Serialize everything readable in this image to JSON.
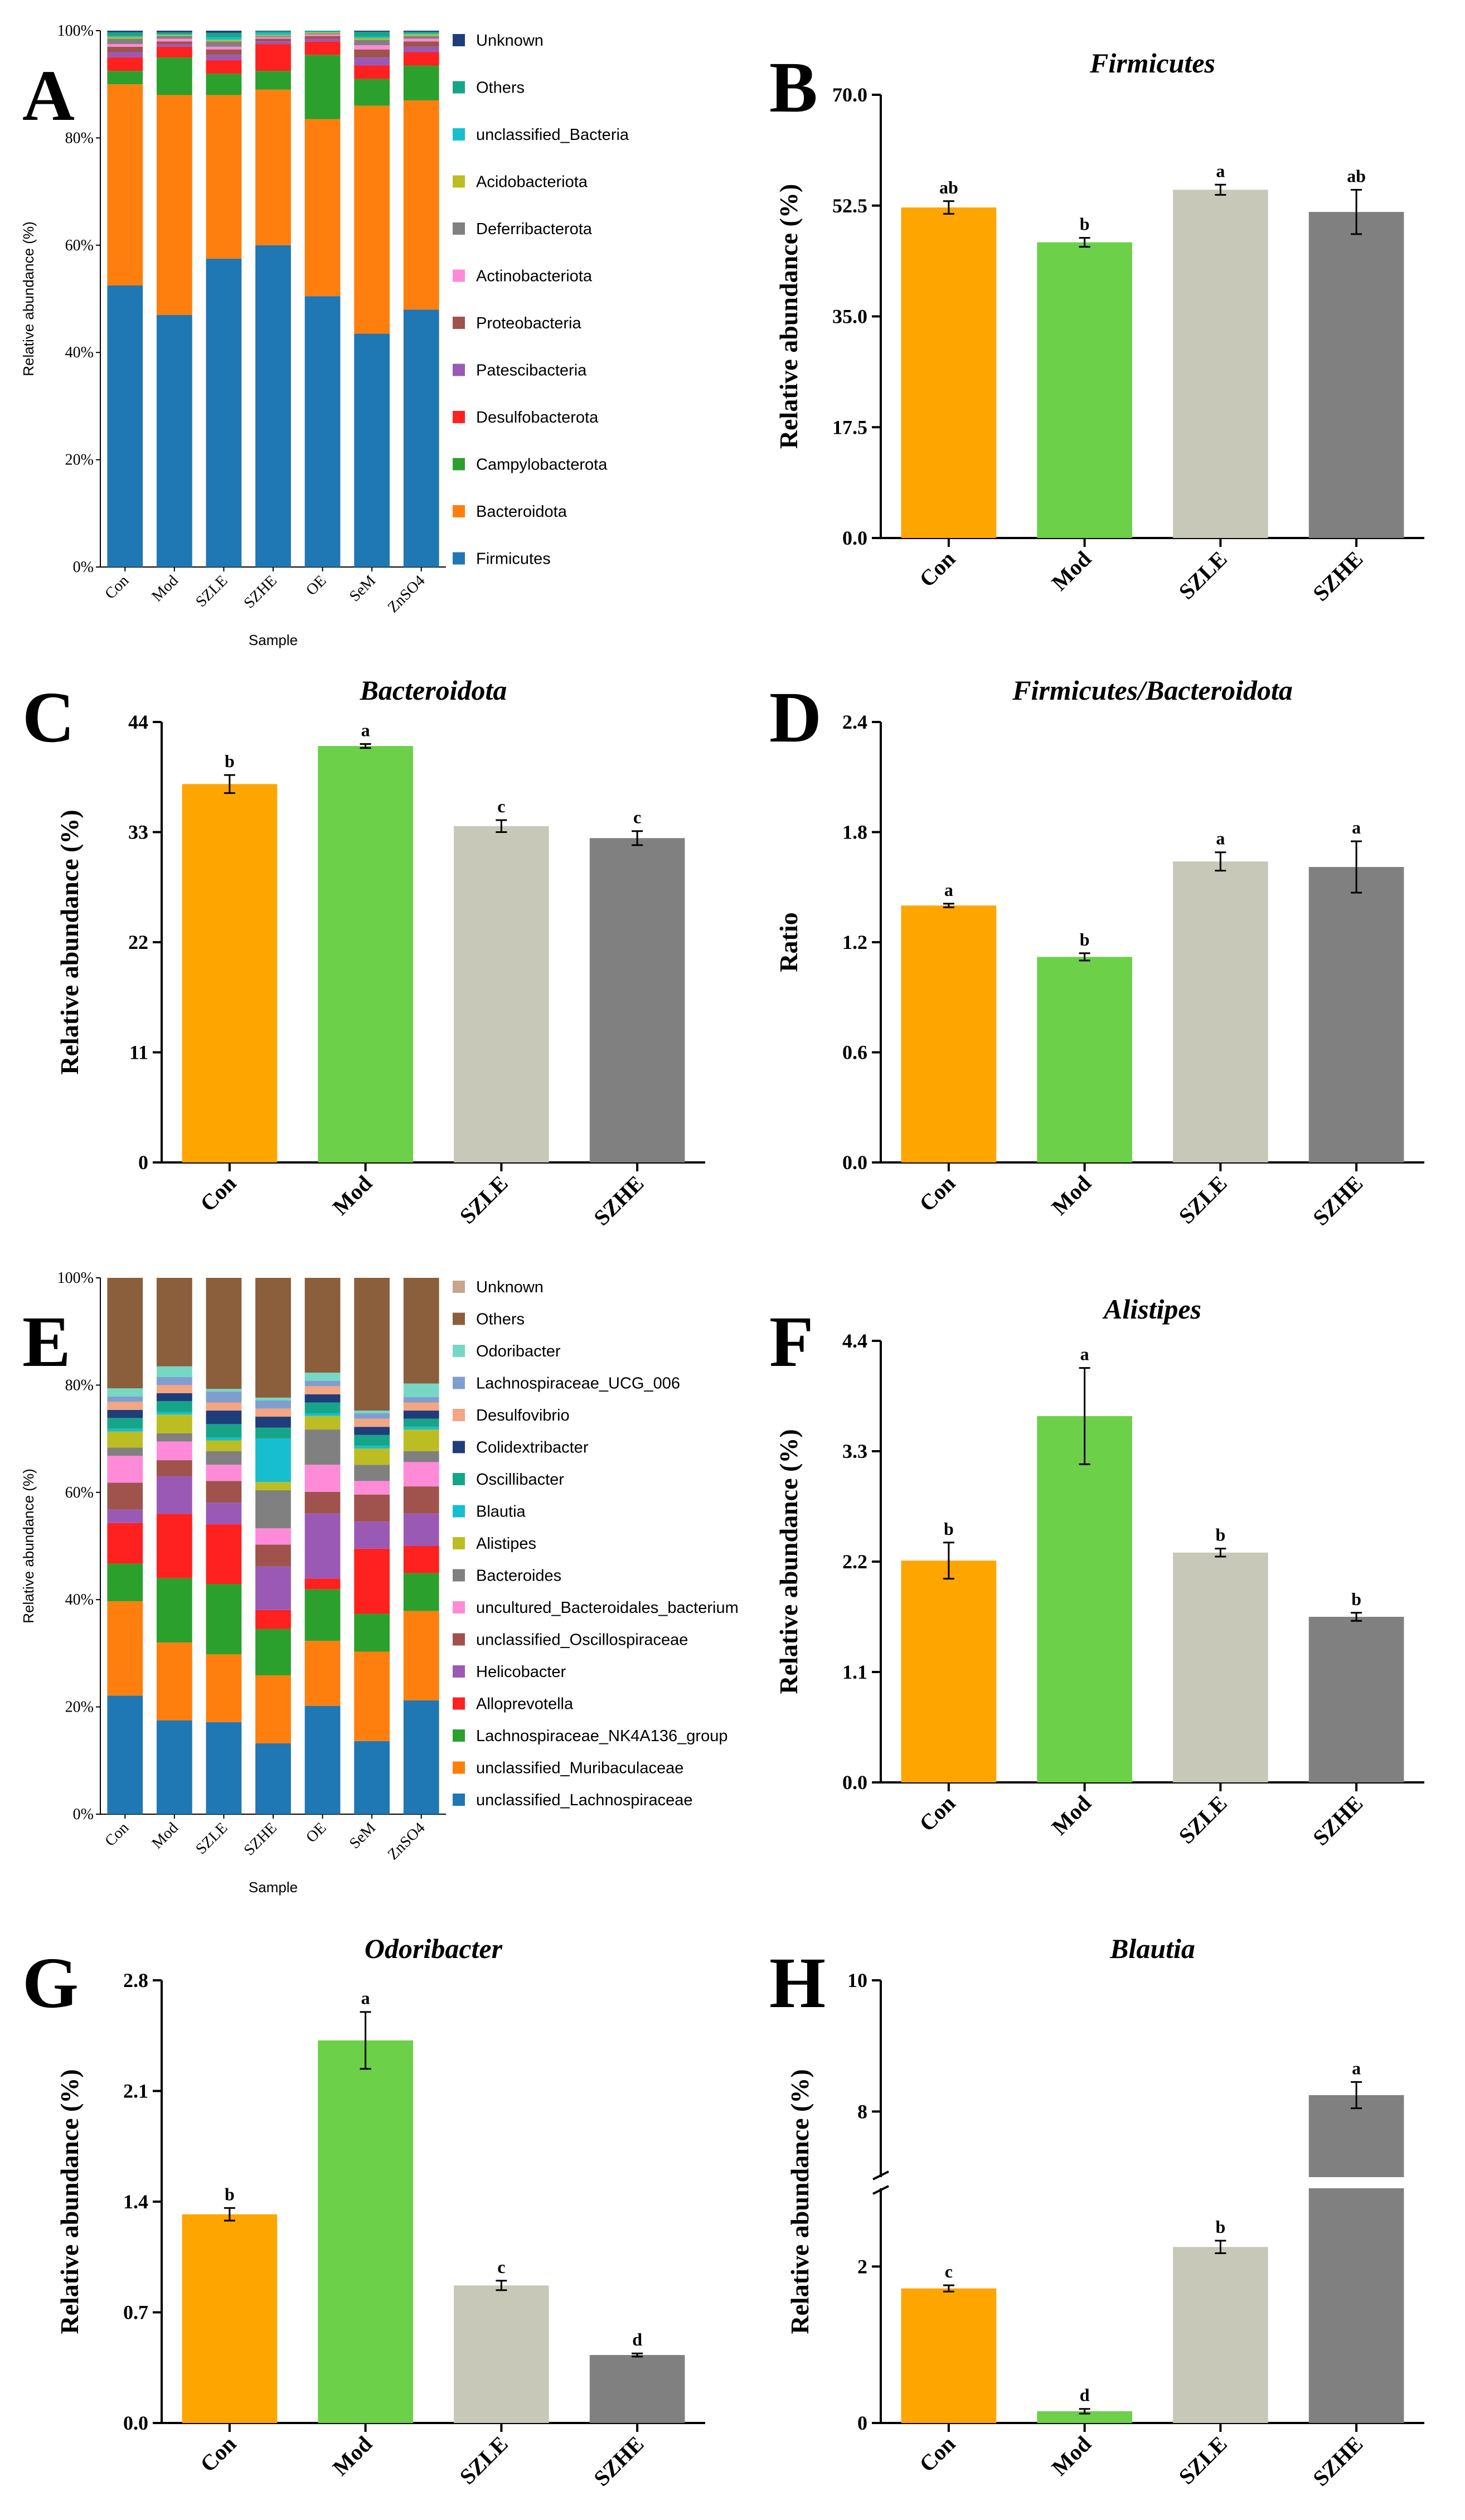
{
  "chart_data": [
    {
      "id": "A",
      "type": "stacked-bar",
      "ylabel": "Relative abundance (%)",
      "xlabel": "Sample",
      "yticks": [
        "0%",
        "20%",
        "40%",
        "60%",
        "80%",
        "100%"
      ],
      "categories": [
        "Con",
        "Mod",
        "SZLE",
        "SZHE",
        "OE",
        "SeM",
        "ZnSO4"
      ],
      "series": [
        {
          "name": "Firmicutes",
          "color": "#1f77b4",
          "values": [
            52.5,
            47.0,
            57.5,
            60.0,
            50.5,
            43.5,
            48.0
          ]
        },
        {
          "name": "Bacteroidota",
          "color": "#ff7f0e",
          "values": [
            37.5,
            41.0,
            30.5,
            29.0,
            33.0,
            42.5,
            39.0
          ]
        },
        {
          "name": "Campylobacterota",
          "color": "#2ca02c",
          "values": [
            2.5,
            7.0,
            4.0,
            3.5,
            12.0,
            5.0,
            6.5
          ]
        },
        {
          "name": "Desulfobacterota",
          "color": "#ff2020",
          "values": [
            2.5,
            2.0,
            2.5,
            5.0,
            2.5,
            2.5,
            2.5
          ]
        },
        {
          "name": "Patescibacteria",
          "color": "#9b59b6",
          "values": [
            1.0,
            0.5,
            1.0,
            0.5,
            0.5,
            1.5,
            1.0
          ]
        },
        {
          "name": "Proteobacteria",
          "color": "#a0524d",
          "values": [
            1.0,
            0.5,
            1.0,
            0.5,
            0.5,
            1.5,
            1.0
          ]
        },
        {
          "name": "Actinobacteriota",
          "color": "#ff8ad8",
          "values": [
            0.5,
            0.5,
            0.5,
            0.3,
            0.3,
            0.8,
            0.5
          ]
        },
        {
          "name": "Deferribacterota",
          "color": "#808080",
          "values": [
            1.0,
            0.5,
            1.0,
            0.2,
            0.2,
            1.0,
            0.5
          ]
        },
        {
          "name": "Acidobacteriota",
          "color": "#bcbd22",
          "values": [
            0.3,
            0.2,
            0.3,
            0.2,
            0.2,
            0.3,
            0.3
          ]
        },
        {
          "name": "unclassified_Bacteria",
          "color": "#17becf",
          "values": [
            0.2,
            0.1,
            0.5,
            0.4,
            0.1,
            0.3,
            0.2
          ]
        },
        {
          "name": "Others",
          "color": "#17a589",
          "values": [
            0.7,
            0.4,
            0.8,
            0.3,
            0.2,
            0.9,
            0.3
          ]
        },
        {
          "name": "Unknown",
          "color": "#1f3d7a",
          "values": [
            0.3,
            0.3,
            0.4,
            0.1,
            0.0,
            0.2,
            0.2
          ]
        }
      ]
    },
    {
      "id": "B",
      "type": "bar",
      "title": "Firmicutes",
      "ylabel": "Relative abundance (%)",
      "ylim": [
        0,
        70
      ],
      "yticks": [
        "0.0",
        "17.5",
        "35.0",
        "52.5",
        "70.0"
      ],
      "categories": [
        "Con",
        "Mod",
        "SZLE",
        "SZHE"
      ],
      "values": [
        52.2,
        46.7,
        55.0,
        51.5
      ],
      "errors": [
        1.0,
        0.7,
        0.8,
        3.5
      ],
      "letters": [
        "ab",
        "b",
        "a",
        "ab"
      ]
    },
    {
      "id": "C",
      "type": "bar",
      "title": "Bacteroidota",
      "ylabel": "Relative abundance (%)",
      "ylim": [
        0,
        44
      ],
      "yticks": [
        "0",
        "11",
        "22",
        "33",
        "44"
      ],
      "categories": [
        "Con",
        "Mod",
        "SZLE",
        "SZHE"
      ],
      "values": [
        37.8,
        41.6,
        33.6,
        32.4
      ],
      "errors": [
        0.9,
        0.2,
        0.6,
        0.7
      ],
      "letters": [
        "b",
        "a",
        "c",
        "c"
      ]
    },
    {
      "id": "D",
      "type": "bar",
      "title": "Firmicutes/Bacteroidota",
      "ylabel": "Ratio",
      "ylim": [
        0,
        2.4
      ],
      "yticks": [
        "0.0",
        "0.6",
        "1.2",
        "1.8",
        "2.4"
      ],
      "categories": [
        "Con",
        "Mod",
        "SZLE",
        "SZHE"
      ],
      "values": [
        1.4,
        1.12,
        1.64,
        1.61
      ],
      "errors": [
        0.01,
        0.02,
        0.05,
        0.14
      ],
      "letters": [
        "a",
        "b",
        "a",
        "a"
      ]
    },
    {
      "id": "E",
      "type": "stacked-bar",
      "ylabel": "Relative abundance (%)",
      "xlabel": "Sample",
      "yticks": [
        "0%",
        "20%",
        "40%",
        "60%",
        "80%",
        "100%"
      ],
      "categories": [
        "Con",
        "Mod",
        "SZLE",
        "SZHE",
        "OE",
        "SeM",
        "ZnSO4"
      ],
      "series": [
        {
          "name": "unclassified_Lachnospiraceae",
          "color": "#1f77b4",
          "values": [
            22,
            17.5,
            17,
            13,
            20,
            13.5,
            21
          ]
        },
        {
          "name": "unclassified_Muribaculaceae",
          "color": "#ff7f0e",
          "values": [
            17.5,
            14.5,
            12.5,
            12.5,
            12,
            16.5,
            16.5
          ]
        },
        {
          "name": "Lachnospiraceae_NK4A136_group",
          "color": "#2ca02c",
          "values": [
            7,
            12,
            13,
            8.5,
            9.5,
            7,
            7
          ]
        },
        {
          "name": "Alloprevotella",
          "color": "#ff2020",
          "values": [
            7.5,
            12,
            11,
            3.5,
            2,
            12,
            5
          ]
        },
        {
          "name": "Helicobacter",
          "color": "#9b59b6",
          "values": [
            2.5,
            7,
            4,
            8,
            12,
            5,
            6
          ]
        },
        {
          "name": "unclassified_Oscillospiraceae",
          "color": "#a0524d",
          "values": [
            5,
            3,
            4,
            4,
            4,
            5,
            5
          ]
        },
        {
          "name": "uncultured_Bacteroidales_bacterium",
          "color": "#ff8ad8",
          "values": [
            5,
            3.5,
            3,
            3,
            5,
            2.5,
            4.5
          ]
        },
        {
          "name": "Bacteroides",
          "color": "#808080",
          "values": [
            1.5,
            1.5,
            2.5,
            7,
            6.5,
            3,
            2
          ]
        },
        {
          "name": "Alistipes",
          "color": "#bcbd22",
          "values": [
            3,
            3.5,
            2,
            1.5,
            2.5,
            3,
            4
          ]
        },
        {
          "name": "Blautia",
          "color": "#17becf",
          "values": [
            0.5,
            0.5,
            0.5,
            8,
            0.5,
            0.5,
            0.5
          ]
        },
        {
          "name": "Oscillibacter",
          "color": "#17a589",
          "values": [
            2,
            2,
            2.5,
            2,
            2,
            2,
            1.5
          ]
        },
        {
          "name": "Colidextribacter",
          "color": "#1f3d7a",
          "values": [
            1.5,
            1.5,
            2.5,
            2,
            1.5,
            1.5,
            1.5
          ]
        },
        {
          "name": "Desulfovibrio",
          "color": "#f4a582",
          "values": [
            1.5,
            1.5,
            1.5,
            1.5,
            1.5,
            1.5,
            1.5
          ]
        },
        {
          "name": "Lachnospiraceae_UCG_006",
          "color": "#7f9ed0",
          "values": [
            1,
            1.5,
            2,
            1.5,
            1,
            1,
            1
          ]
        },
        {
          "name": "Odoribacter",
          "color": "#76d7c4",
          "values": [
            1.5,
            2,
            0.5,
            0.5,
            1.5,
            0.5,
            2.5
          ]
        },
        {
          "name": "Others",
          "color": "#8b5e3c",
          "values": [
            20.5,
            16.5,
            20.5,
            22,
            17.5,
            24.5,
            19.5
          ]
        },
        {
          "name": "Unknown",
          "color": "#c8a58c",
          "values": [
            0.0,
            0.0,
            0.0,
            0.0,
            0.0,
            0.0,
            0.0
          ]
        }
      ]
    },
    {
      "id": "F",
      "type": "bar",
      "title": "Alistipes",
      "ylabel": "Relative abundance (%)",
      "ylim": [
        0,
        4.4
      ],
      "yticks": [
        "0.0",
        "1.1",
        "2.2",
        "3.3",
        "4.4"
      ],
      "categories": [
        "Con",
        "Mod",
        "SZLE",
        "SZHE"
      ],
      "values": [
        2.21,
        3.65,
        2.29,
        1.65
      ],
      "errors": [
        0.18,
        0.48,
        0.04,
        0.04
      ],
      "letters": [
        "b",
        "a",
        "b",
        "b"
      ]
    },
    {
      "id": "G",
      "type": "bar",
      "title": "Odoribacter",
      "ylabel": "Relative abundance (%)",
      "ylim": [
        0,
        2.8
      ],
      "yticks": [
        "0.0",
        "0.7",
        "1.4",
        "2.1",
        "2.8"
      ],
      "categories": [
        "Con",
        "Mod",
        "SZLE",
        "SZHE"
      ],
      "values": [
        1.32,
        2.42,
        0.87,
        0.43
      ],
      "errors": [
        0.04,
        0.18,
        0.03,
        0.01
      ],
      "letters": [
        "b",
        "a",
        "c",
        "d"
      ]
    },
    {
      "id": "H",
      "type": "bar",
      "title": "Blautia",
      "ylabel": "Relative abundance (%)",
      "yaxis_break": true,
      "ylim_lower": [
        0,
        3
      ],
      "ylim_upper": [
        7,
        10
      ],
      "yticks": [
        "0",
        "2",
        "8",
        "10"
      ],
      "categories": [
        "Con",
        "Mod",
        "SZLE",
        "SZHE"
      ],
      "values": [
        1.72,
        0.15,
        2.25,
        8.25
      ],
      "errors": [
        0.04,
        0.03,
        0.08,
        0.2
      ],
      "letters": [
        "c",
        "d",
        "b",
        "a"
      ]
    }
  ]
}
